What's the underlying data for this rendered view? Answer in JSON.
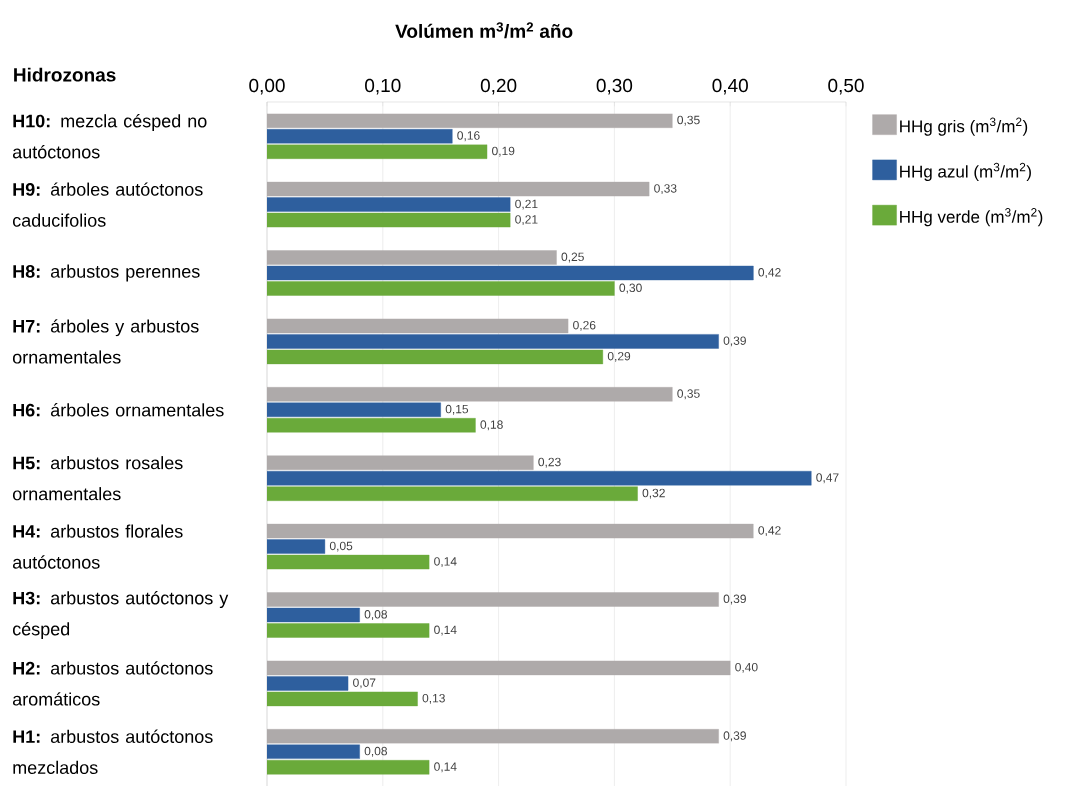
{
  "chart_data": {
    "type": "bar",
    "orientation": "horizontal",
    "xlabel": "Volúmen m$^{3}$/m$^{2}$ año",
    "ylabel": "Hidrozonas",
    "categories": [
      "**H10:** mezcla césped no autóctonos",
      "**H9:** árboles autóctonos caducifolios",
      "**H8:** arbustos perennes",
      "**H7:** árboles y arbustos ornamentales",
      "**H6:** árboles ornamentales",
      "**H5:** arbustos rosales ornamentales",
      "**H4:** arbustos florales autóctonos",
      "**H3:** arbustos autóctonos y césped",
      "**H2:** arbustos autóctonos aromáticos",
      "**H1:** arbustos autóctonos mezclados"
    ],
    "series": [
      {
        "name": "HHg gris (m$^{3}$/m$^{2}$)",
        "color": "#aeaaaa",
        "values": [
          0.35,
          0.33,
          0.25,
          0.26,
          0.35,
          0.23,
          0.42,
          0.39,
          0.4,
          0.39
        ],
        "value_labels": [
          "0,35",
          "0,33",
          "0,25",
          "0,26",
          "0,35",
          "0,23",
          "0,42",
          "0,39",
          "0,40",
          "0,39"
        ]
      },
      {
        "name": "HHg azul (m$^{3}$/m$^{2}$)",
        "color": "#2e5f9e",
        "values": [
          0.16,
          0.21,
          0.42,
          0.39,
          0.15,
          0.47,
          0.05,
          0.08,
          0.07,
          0.08
        ],
        "value_labels": [
          "0,16",
          "0,21",
          "0,42",
          "0,39",
          "0,15",
          "0,47",
          "0,05",
          "0,08",
          "0,07",
          "0,08"
        ]
      },
      {
        "name": "HHg verde (m$^{3}$/m$^{2}$)",
        "color": "#6aaa3a",
        "values": [
          0.19,
          0.21,
          0.3,
          0.29,
          0.18,
          0.32,
          0.14,
          0.14,
          0.13,
          0.14
        ],
        "value_labels": [
          "0,19",
          "0,21",
          "0,30",
          "0,29",
          "0,18",
          "0,32",
          "0,14",
          "0,14",
          "0,13",
          "0,14"
        ]
      }
    ],
    "xlim": [
      0,
      0.5
    ],
    "xticks": [
      {
        "value": 0,
        "label": "0,00"
      },
      {
        "value": 0.1,
        "label": "0,10"
      },
      {
        "value": 0.2,
        "label": "0,20"
      },
      {
        "value": 0.3,
        "label": "0,30"
      },
      {
        "value": 0.4,
        "label": "0,40"
      },
      {
        "value": 0.5,
        "label": "0,50"
      }
    ],
    "grid": "x",
    "legend": "right"
  }
}
